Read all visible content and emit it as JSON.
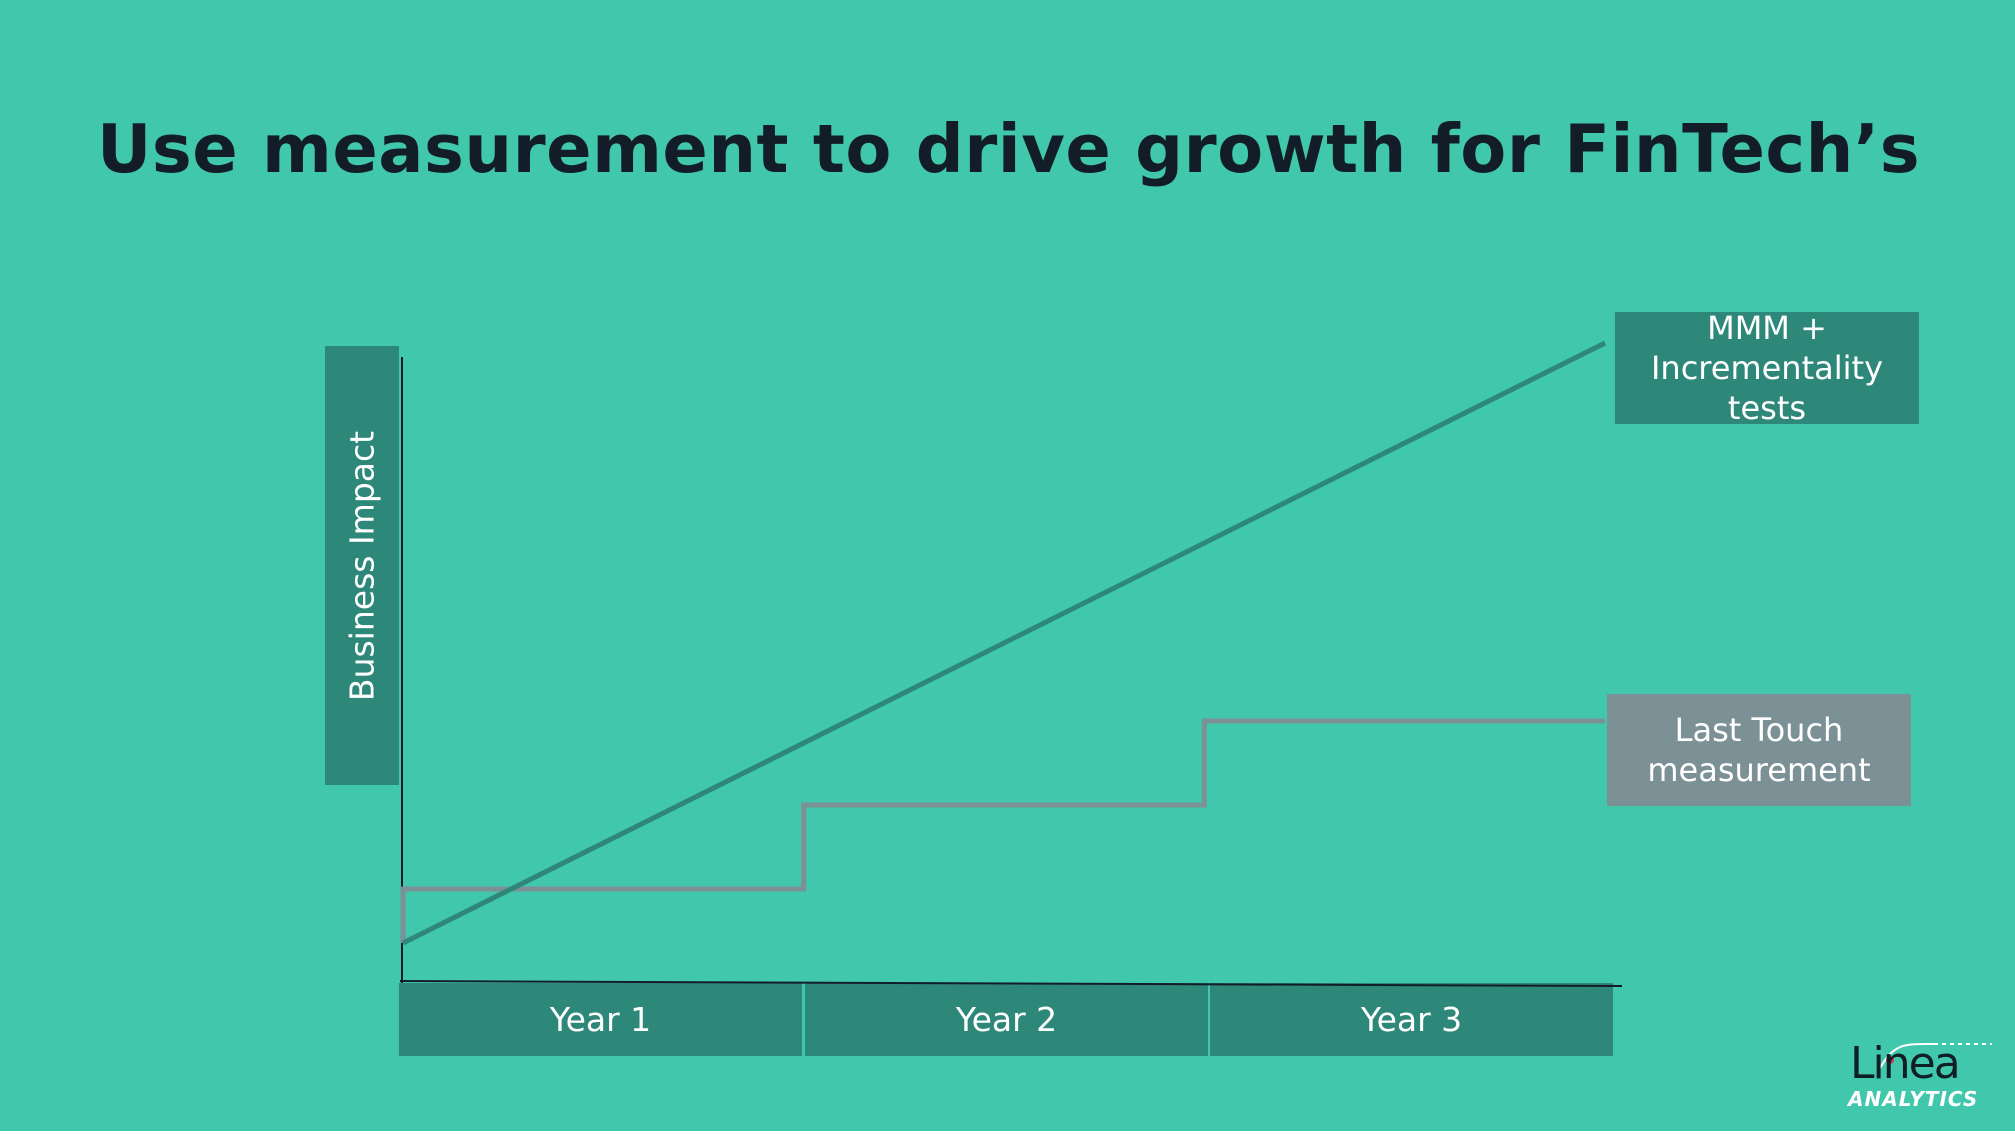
{
  "slide": {
    "title": "Use measurement to drive growth for FinTech’s",
    "background": "#41c7ac",
    "title_color": "#131d27",
    "box_color": "#2e8879",
    "grey_color": "#7c9196"
  },
  "chart_data": {
    "type": "line",
    "ylabel": "Business Impact",
    "categories": [
      "Year 1",
      "Year 2",
      "Year 3"
    ],
    "series": [
      {
        "name": "MMM + Incrementality tests",
        "label_lines": [
          "MMM +",
          "Incrementality",
          "tests"
        ],
        "color": "#2e8879",
        "style": "linear",
        "points": [
          {
            "x": 0,
            "y": 0.0
          },
          {
            "x": 3,
            "y": 1.0
          }
        ]
      },
      {
        "name": "Last Touch measurement",
        "label_lines": [
          "Last Touch",
          "measurement"
        ],
        "color": "#7c9196",
        "style": "step",
        "points": [
          {
            "x": 0,
            "y": 0.09
          },
          {
            "x": 1,
            "y": 0.09
          },
          {
            "x": 1,
            "y": 0.23
          },
          {
            "x": 2,
            "y": 0.23
          },
          {
            "x": 2,
            "y": 0.37
          },
          {
            "x": 3,
            "y": 0.37
          }
        ]
      }
    ],
    "xlim": [
      0,
      3
    ],
    "ylim": [
      0,
      1
    ],
    "grid": false
  },
  "logo": {
    "wordmark": "Linea",
    "subtitle": "ANALYTICS",
    "accent_color": "#e0364c"
  }
}
